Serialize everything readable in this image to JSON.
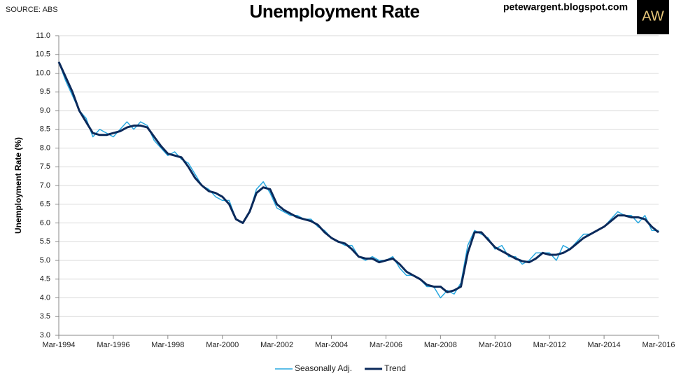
{
  "source": "SOURCE: ABS",
  "website": "petewargent.blogspot.com",
  "logo": "AW",
  "chart_data": {
    "type": "line",
    "title": "Unemployment Rate",
    "y_label": "Unemployment Rate (%)",
    "x": [
      "1994-03",
      "1994-06",
      "1994-09",
      "1994-12",
      "1995-03",
      "1995-06",
      "1995-09",
      "1995-12",
      "1996-03",
      "1996-06",
      "1996-09",
      "1996-12",
      "1997-03",
      "1997-06",
      "1997-09",
      "1997-12",
      "1998-03",
      "1998-06",
      "1998-09",
      "1998-12",
      "1999-03",
      "1999-06",
      "1999-09",
      "1999-12",
      "2000-03",
      "2000-06",
      "2000-09",
      "2000-12",
      "2001-03",
      "2001-06",
      "2001-09",
      "2001-12",
      "2002-03",
      "2002-06",
      "2002-09",
      "2002-12",
      "2003-03",
      "2003-06",
      "2003-09",
      "2003-12",
      "2004-03",
      "2004-06",
      "2004-09",
      "2004-12",
      "2005-03",
      "2005-06",
      "2005-09",
      "2005-12",
      "2006-03",
      "2006-06",
      "2006-09",
      "2006-12",
      "2007-03",
      "2007-06",
      "2007-09",
      "2007-12",
      "2008-03",
      "2008-06",
      "2008-09",
      "2008-12",
      "2009-03",
      "2009-06",
      "2009-09",
      "2009-12",
      "2010-03",
      "2010-06",
      "2010-09",
      "2010-12",
      "2011-03",
      "2011-06",
      "2011-09",
      "2011-12",
      "2012-03",
      "2012-06",
      "2012-09",
      "2012-12",
      "2013-03",
      "2013-06",
      "2013-09",
      "2013-12",
      "2014-03",
      "2014-06",
      "2014-09",
      "2014-12",
      "2015-03",
      "2015-06",
      "2015-09",
      "2015-12",
      "2016-03"
    ],
    "series": [
      {
        "name": "Seasonally Adj.",
        "color": "#29a8e0",
        "width": 1.5,
        "values": [
          10.3,
          9.8,
          9.4,
          9.0,
          8.8,
          8.3,
          8.5,
          8.4,
          8.3,
          8.5,
          8.7,
          8.5,
          8.7,
          8.6,
          8.2,
          8.0,
          7.8,
          7.9,
          7.7,
          7.6,
          7.3,
          7.0,
          6.9,
          6.7,
          6.6,
          6.6,
          6.1,
          6.0,
          6.3,
          6.9,
          7.1,
          6.8,
          6.4,
          6.3,
          6.2,
          6.2,
          6.1,
          6.1,
          5.9,
          5.8,
          5.6,
          5.5,
          5.4,
          5.4,
          5.1,
          5.0,
          5.1,
          5.0,
          5.0,
          5.1,
          4.8,
          4.6,
          4.6,
          4.5,
          4.3,
          4.3,
          4.0,
          4.2,
          4.1,
          4.4,
          5.4,
          5.8,
          5.7,
          5.6,
          5.3,
          5.4,
          5.1,
          5.1,
          4.9,
          5.0,
          5.2,
          5.2,
          5.2,
          5.0,
          5.4,
          5.3,
          5.5,
          5.7,
          5.7,
          5.8,
          5.9,
          6.1,
          6.3,
          6.2,
          6.2,
          6.0,
          6.2,
          5.8,
          5.8
        ]
      },
      {
        "name": "Trend",
        "color": "#0b2a5b",
        "width": 3,
        "values": [
          10.3,
          9.9,
          9.5,
          9.0,
          8.7,
          8.4,
          8.35,
          8.35,
          8.4,
          8.45,
          8.55,
          8.6,
          8.6,
          8.55,
          8.3,
          8.05,
          7.85,
          7.8,
          7.75,
          7.5,
          7.2,
          7.0,
          6.85,
          6.8,
          6.7,
          6.5,
          6.1,
          6.0,
          6.3,
          6.8,
          6.95,
          6.9,
          6.5,
          6.35,
          6.25,
          6.15,
          6.1,
          6.05,
          5.95,
          5.75,
          5.6,
          5.5,
          5.45,
          5.3,
          5.1,
          5.05,
          5.05,
          4.95,
          5.0,
          5.05,
          4.9,
          4.7,
          4.6,
          4.5,
          4.35,
          4.3,
          4.3,
          4.15,
          4.2,
          4.3,
          5.2,
          5.75,
          5.75,
          5.55,
          5.35,
          5.25,
          5.15,
          5.05,
          4.98,
          4.95,
          5.05,
          5.2,
          5.15,
          5.15,
          5.2,
          5.3,
          5.45,
          5.6,
          5.7,
          5.8,
          5.9,
          6.05,
          6.2,
          6.2,
          6.15,
          6.15,
          6.1,
          5.9,
          5.75
        ]
      }
    ],
    "xlim": [
      "1994-03",
      "2016-03"
    ],
    "xticks": [
      {
        "value": "1994-03",
        "label": "Mar-1994"
      },
      {
        "value": "1996-03",
        "label": "Mar-1996"
      },
      {
        "value": "1998-03",
        "label": "Mar-1998"
      },
      {
        "value": "2000-03",
        "label": "Mar-2000"
      },
      {
        "value": "2002-03",
        "label": "Mar-2002"
      },
      {
        "value": "2004-03",
        "label": "Mar-2004"
      },
      {
        "value": "2006-03",
        "label": "Mar-2006"
      },
      {
        "value": "2008-03",
        "label": "Mar-2008"
      },
      {
        "value": "2010-03",
        "label": "Mar-2010"
      },
      {
        "value": "2012-03",
        "label": "Mar-2012"
      },
      {
        "value": "2014-03",
        "label": "Mar-2014"
      },
      {
        "value": "2016-03",
        "label": "Mar-2016"
      }
    ],
    "ylim": [
      3,
      11
    ],
    "yticks": [
      {
        "value": 3,
        "label": "3.0"
      },
      3.5,
      {
        "value": 4,
        "label": "4.0"
      },
      4.5,
      {
        "value": 5,
        "label": "5.0"
      },
      5.5,
      {
        "value": 6,
        "label": "6.0"
      },
      6.5,
      {
        "value": 7,
        "label": "7.0"
      },
      7.5,
      {
        "value": 8,
        "label": "8.0"
      },
      8.5,
      {
        "value": 9,
        "label": "9.0"
      },
      9.5,
      {
        "value": 10,
        "label": "10.0"
      },
      10.5,
      {
        "value": 11,
        "label": "11.0"
      }
    ],
    "grid": true,
    "legend": "bottom"
  }
}
